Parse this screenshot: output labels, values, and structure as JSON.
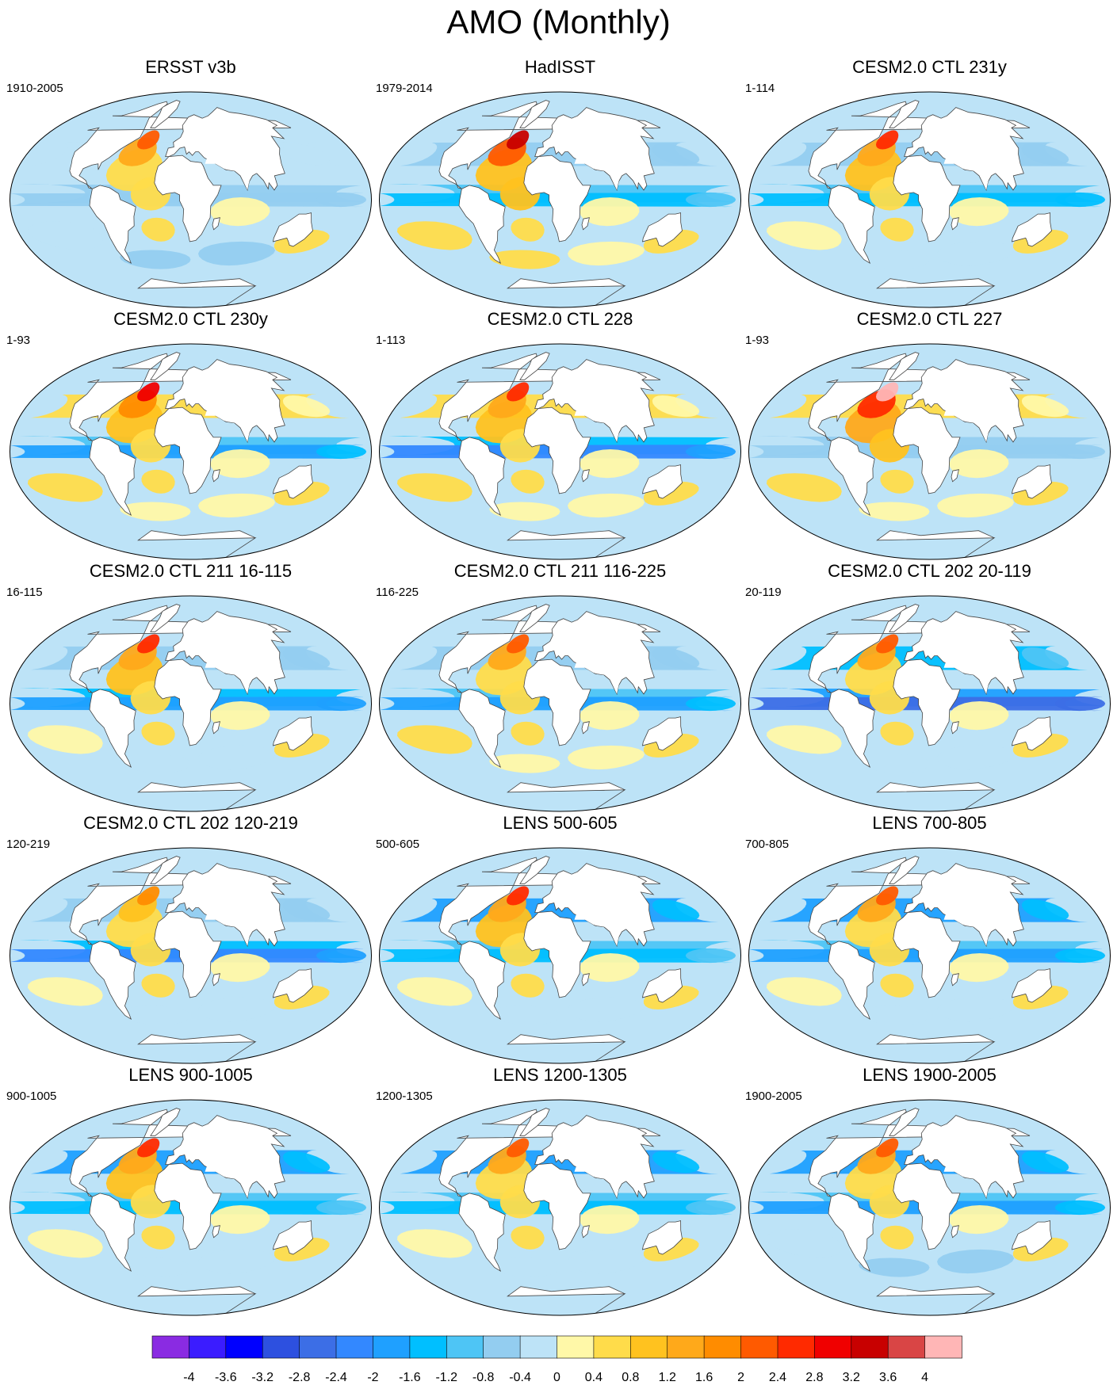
{
  "title": "AMO (Monthly)",
  "panels": [
    {
      "title": "ERSST v3b",
      "years": "1910-2005",
      "amo_peak": 2.2,
      "pacific": -0.8,
      "northpac": -0.4,
      "southern": -0.6
    },
    {
      "title": "HadISST",
      "years": "1979-2014",
      "amo_peak": 3.4,
      "pacific": -1.2,
      "northpac": -0.8,
      "southern": 0.4
    },
    {
      "title": "CESM2.0 CTL 231y",
      "years": "1-114",
      "amo_peak": 2.6,
      "pacific": -1.4,
      "northpac": -0.8,
      "southern": -0.2
    },
    {
      "title": "CESM2.0 CTL 230y",
      "years": "1-93",
      "amo_peak": 3.0,
      "pacific": -1.6,
      "northpac": 0.4,
      "southern": 0.2
    },
    {
      "title": "CESM2.0 CTL 228",
      "years": "1-113",
      "amo_peak": 2.4,
      "pacific": -2.2,
      "northpac": 0.4,
      "southern": 0.2
    },
    {
      "title": "CESM2.0 CTL 227",
      "years": "1-93",
      "amo_peak": 4.0,
      "pacific": -0.8,
      "northpac": 0.4,
      "southern": 0.2
    },
    {
      "title": "CESM2.0 CTL 211 16-115",
      "years": "16-115",
      "amo_peak": 2.6,
      "pacific": -2.0,
      "northpac": -0.8,
      "southern": -0.2
    },
    {
      "title": "CESM2.0 CTL 211 116-225",
      "years": "116-225",
      "amo_peak": 2.2,
      "pacific": -1.6,
      "northpac": -0.8,
      "southern": 0.2
    },
    {
      "title": "CESM2.0 CTL 202 20-119",
      "years": "20-119",
      "amo_peak": 2.2,
      "pacific": -2.8,
      "northpac": -1.2,
      "southern": -0.2
    },
    {
      "title": "CESM2.0 CTL 202 120-219",
      "years": "120-219",
      "amo_peak": 1.8,
      "pacific": -2.2,
      "northpac": -0.8,
      "southern": -0.2
    },
    {
      "title": "LENS 500-605",
      "years": "500-605",
      "amo_peak": 2.4,
      "pacific": -1.2,
      "northpac": -1.6,
      "southern": -0.2
    },
    {
      "title": "LENS 700-805",
      "years": "700-805",
      "amo_peak": 2.0,
      "pacific": -1.6,
      "northpac": -1.6,
      "southern": -0.2
    },
    {
      "title": "LENS 900-1005",
      "years": "900-1005",
      "amo_peak": 2.6,
      "pacific": -1.2,
      "northpac": -1.6,
      "southern": -0.2
    },
    {
      "title": "LENS 1200-1305",
      "years": "1200-1305",
      "amo_peak": 2.2,
      "pacific": -1.2,
      "northpac": -1.6,
      "southern": -0.2
    },
    {
      "title": "LENS 1900-2005",
      "years": "1900-2005",
      "amo_peak": 2.2,
      "pacific": -1.6,
      "northpac": -1.6,
      "southern": -0.6
    }
  ],
  "colorbar": {
    "labels": [
      "-4",
      "-3.6",
      "-3.2",
      "-2.8",
      "-2.4",
      "-2",
      "-1.6",
      "-1.2",
      "-0.8",
      "-0.4",
      "0",
      "0.4",
      "0.8",
      "1.2",
      "1.6",
      "2",
      "2.4",
      "2.8",
      "3.2",
      "3.6",
      "4"
    ],
    "colors": [
      "#8a2be2",
      "#3b1cff",
      "#0000ff",
      "#2d50e0",
      "#3c6ee6",
      "#3388ff",
      "#1fa0ff",
      "#00bfff",
      "#4ec5f5",
      "#93cdf0",
      "#bde3f7",
      "#fff8a8",
      "#ffdc4a",
      "#ffc21f",
      "#ffa91a",
      "#ff8c00",
      "#ff5a00",
      "#ff2a00",
      "#f00000",
      "#c80000",
      "#d94545",
      "#ffb6b6"
    ]
  }
}
